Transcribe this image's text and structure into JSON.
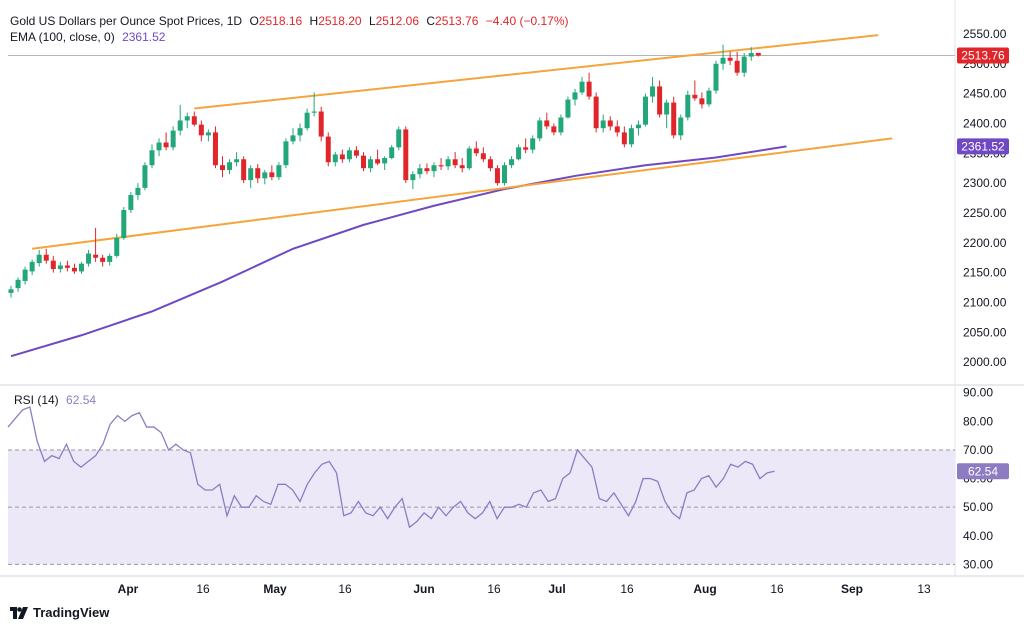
{
  "header": {
    "symbol": "Gold US Dollars per Ounce Spot Prices, 1D",
    "open_label": "O",
    "open": "2518.16",
    "high_label": "H",
    "high": "2518.20",
    "low_label": "L",
    "low": "2512.06",
    "close_label": "C",
    "close": "2513.76",
    "change": "−4.40 (−0.17%)",
    "ema_label": "EMA (100, close, 0)",
    "ema_value": "2361.52"
  },
  "rsi_legend": {
    "label": "RSI (14)",
    "value": "62.54"
  },
  "brand": {
    "name": "TradingView"
  },
  "colors": {
    "up": "#22a77a",
    "down": "#e0262b",
    "channel": "#f5a53b",
    "ema": "#6e49c3",
    "rsi": "#8e7cc3",
    "rsi_band": "#ece8f7"
  },
  "chart_data": [
    {
      "type": "candlestick",
      "title": "Gold US Dollars per Ounce Spot Prices, 1D",
      "y_ticks": [
        2000,
        2050,
        2100,
        2150,
        2200,
        2250,
        2300,
        2350,
        2400,
        2450,
        2500,
        2550
      ],
      "ylim": [
        1965,
        2570
      ],
      "x_ticks": [
        "Apr",
        "16",
        "May",
        "16",
        "Jun",
        "16",
        "Jul",
        "16",
        "Aug",
        "16",
        "Sep",
        "13"
      ],
      "price_label": "2513.76",
      "ema_label": "2361.52",
      "ohlc": [
        [
          2116,
          2128,
          2108,
          2122
        ],
        [
          2124,
          2142,
          2118,
          2138
        ],
        [
          2136,
          2160,
          2130,
          2155
        ],
        [
          2152,
          2172,
          2146,
          2168
        ],
        [
          2166,
          2188,
          2160,
          2180
        ],
        [
          2180,
          2190,
          2165,
          2170
        ],
        [
          2170,
          2178,
          2150,
          2156
        ],
        [
          2156,
          2168,
          2150,
          2162
        ],
        [
          2162,
          2170,
          2152,
          2158
        ],
        [
          2158,
          2165,
          2148,
          2152
        ],
        [
          2152,
          2168,
          2148,
          2165
        ],
        [
          2165,
          2188,
          2160,
          2182
        ],
        [
          2180,
          2225,
          2168,
          2175
        ],
        [
          2175,
          2180,
          2160,
          2168
        ],
        [
          2168,
          2182,
          2162,
          2178
        ],
        [
          2178,
          2215,
          2175,
          2208
        ],
        [
          2208,
          2260,
          2205,
          2255
        ],
        [
          2255,
          2285,
          2250,
          2280
        ],
        [
          2280,
          2300,
          2272,
          2292
        ],
        [
          2292,
          2335,
          2288,
          2330
        ],
        [
          2330,
          2365,
          2325,
          2355
        ],
        [
          2355,
          2375,
          2345,
          2368
        ],
        [
          2368,
          2385,
          2355,
          2360
        ],
        [
          2360,
          2395,
          2355,
          2388
        ],
        [
          2388,
          2431,
          2380,
          2405
        ],
        [
          2405,
          2418,
          2392,
          2412
        ],
        [
          2412,
          2420,
          2395,
          2398
        ],
        [
          2398,
          2405,
          2370,
          2380
        ],
        [
          2380,
          2390,
          2370,
          2385
        ],
        [
          2385,
          2395,
          2325,
          2330
        ],
        [
          2330,
          2345,
          2310,
          2322
        ],
        [
          2322,
          2340,
          2315,
          2335
        ],
        [
          2335,
          2352,
          2328,
          2340
        ],
        [
          2340,
          2345,
          2300,
          2305
        ],
        [
          2305,
          2330,
          2292,
          2325
        ],
        [
          2325,
          2332,
          2300,
          2308
        ],
        [
          2308,
          2322,
          2298,
          2318
        ],
        [
          2318,
          2330,
          2305,
          2310
        ],
        [
          2310,
          2335,
          2305,
          2330
        ],
        [
          2330,
          2375,
          2325,
          2370
        ],
        [
          2370,
          2392,
          2365,
          2380
        ],
        [
          2380,
          2400,
          2370,
          2392
        ],
        [
          2392,
          2425,
          2388,
          2418
        ],
        [
          2418,
          2452,
          2412,
          2420
        ],
        [
          2420,
          2428,
          2370,
          2378
        ],
        [
          2378,
          2385,
          2328,
          2335
        ],
        [
          2335,
          2352,
          2328,
          2348
        ],
        [
          2348,
          2356,
          2334,
          2340
        ],
        [
          2340,
          2360,
          2335,
          2355
        ],
        [
          2355,
          2362,
          2342,
          2346
        ],
        [
          2346,
          2352,
          2320,
          2325
        ],
        [
          2325,
          2345,
          2318,
          2340
        ],
        [
          2340,
          2356,
          2330,
          2333
        ],
        [
          2333,
          2345,
          2322,
          2342
        ],
        [
          2342,
          2364,
          2340,
          2360
        ],
        [
          2360,
          2395,
          2355,
          2390
        ],
        [
          2390,
          2395,
          2300,
          2305
        ],
        [
          2305,
          2320,
          2290,
          2315
        ],
        [
          2315,
          2332,
          2308,
          2325
        ],
        [
          2325,
          2333,
          2315,
          2320
        ],
        [
          2320,
          2335,
          2310,
          2330
        ],
        [
          2330,
          2342,
          2322,
          2328
        ],
        [
          2328,
          2345,
          2322,
          2340
        ],
        [
          2340,
          2352,
          2325,
          2330
        ],
        [
          2330,
          2342,
          2318,
          2325
        ],
        [
          2325,
          2362,
          2322,
          2358
        ],
        [
          2358,
          2370,
          2345,
          2350
        ],
        [
          2350,
          2360,
          2335,
          2340
        ],
        [
          2340,
          2345,
          2320,
          2325
        ],
        [
          2325,
          2330,
          2296,
          2300
        ],
        [
          2300,
          2335,
          2296,
          2330
        ],
        [
          2330,
          2345,
          2325,
          2340
        ],
        [
          2340,
          2365,
          2338,
          2360
        ],
        [
          2360,
          2375,
          2350,
          2356
        ],
        [
          2356,
          2380,
          2350,
          2375
        ],
        [
          2375,
          2410,
          2370,
          2405
        ],
        [
          2405,
          2418,
          2390,
          2395
        ],
        [
          2395,
          2400,
          2380,
          2385
        ],
        [
          2385,
          2415,
          2380,
          2410
        ],
        [
          2410,
          2445,
          2408,
          2440
        ],
        [
          2440,
          2458,
          2430,
          2452
        ],
        [
          2452,
          2478,
          2448,
          2470
        ],
        [
          2470,
          2485,
          2440,
          2445
        ],
        [
          2445,
          2452,
          2385,
          2392
        ],
        [
          2392,
          2415,
          2385,
          2405
        ],
        [
          2405,
          2412,
          2388,
          2395
        ],
        [
          2395,
          2405,
          2378,
          2385
        ],
        [
          2385,
          2395,
          2360,
          2365
        ],
        [
          2365,
          2398,
          2360,
          2392
        ],
        [
          2392,
          2405,
          2380,
          2398
        ],
        [
          2398,
          2450,
          2395,
          2445
        ],
        [
          2445,
          2478,
          2435,
          2462
        ],
        [
          2462,
          2472,
          2410,
          2415
        ],
        [
          2415,
          2440,
          2392,
          2435
        ],
        [
          2435,
          2445,
          2375,
          2380
        ],
        [
          2380,
          2415,
          2372,
          2410
        ],
        [
          2410,
          2455,
          2405,
          2448
        ],
        [
          2448,
          2472,
          2438,
          2442
        ],
        [
          2442,
          2452,
          2425,
          2432
        ],
        [
          2432,
          2460,
          2428,
          2455
        ],
        [
          2455,
          2505,
          2450,
          2500
        ],
        [
          2500,
          2532,
          2490,
          2510
        ],
        [
          2510,
          2520,
          2498,
          2505
        ],
        [
          2505,
          2520,
          2480,
          2485
        ],
        [
          2485,
          2518,
          2478,
          2512
        ],
        [
          2512,
          2528,
          2505,
          2518
        ],
        [
          2518.16,
          2518.2,
          2512.06,
          2513.76
        ]
      ],
      "ema_100": [
        [
          0,
          2010
        ],
        [
          10,
          2045
        ],
        [
          20,
          2085
        ],
        [
          30,
          2135
        ],
        [
          40,
          2190
        ],
        [
          50,
          2230
        ],
        [
          60,
          2262
        ],
        [
          70,
          2290
        ],
        [
          80,
          2312
        ],
        [
          90,
          2330
        ],
        [
          100,
          2343
        ],
        [
          110,
          2361.52
        ]
      ],
      "channel_upper": [
        [
          3,
          2190
        ],
        [
          130,
          2548
        ]
      ],
      "channel_lower": [
        [
          3,
          2188
        ],
        [
          140,
          2375
        ]
      ],
      "upper_start_index": 33
    },
    {
      "type": "line",
      "title": "RSI (14)",
      "y_ticks": [
        30,
        40,
        50,
        60,
        70,
        80,
        90
      ],
      "ylim": [
        27,
        92
      ],
      "bands": [
        30,
        50,
        70
      ],
      "value_label": "62.54",
      "values": [
        78,
        81,
        84,
        85,
        73,
        66,
        68,
        67,
        72,
        66,
        64,
        66,
        68,
        72,
        79,
        82,
        80,
        82,
        83,
        78,
        78,
        76,
        70,
        72,
        70,
        69,
        58,
        56,
        56,
        58,
        47,
        54,
        50,
        50,
        54,
        52,
        51,
        58,
        58,
        56,
        52,
        58,
        62,
        65,
        66,
        62,
        47,
        48,
        52,
        48,
        47,
        50,
        46,
        50,
        53,
        43,
        45,
        48,
        46,
        50,
        47,
        50,
        52,
        48,
        46,
        48,
        52,
        46,
        50,
        50,
        51,
        50,
        55,
        56,
        52,
        53,
        60,
        62,
        70,
        67,
        64,
        53,
        52,
        55,
        51,
        47,
        52,
        60,
        60,
        59,
        52,
        48,
        46,
        55,
        56,
        60,
        61,
        57,
        60,
        65,
        64,
        66,
        65,
        60,
        62,
        62.54
      ]
    }
  ]
}
